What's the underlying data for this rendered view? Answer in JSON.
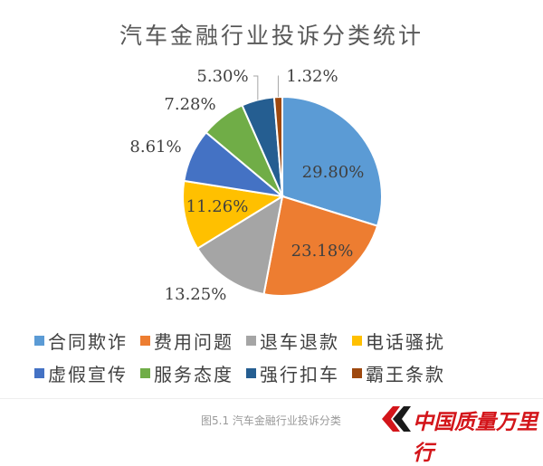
{
  "chart_data": {
    "type": "pie",
    "title": "汽车金融行业投诉分类统计",
    "slices": [
      {
        "label": "合同欺诈",
        "value": 29.8,
        "display": "29.80%",
        "color": "#5b9bd5"
      },
      {
        "label": "费用问题",
        "value": 23.18,
        "display": "23.18%",
        "color": "#ed7d31"
      },
      {
        "label": "退车退款",
        "value": 13.25,
        "display": "13.25%",
        "color": "#a5a5a5"
      },
      {
        "label": "电话骚扰",
        "value": 11.26,
        "display": "11.26%",
        "color": "#ffc000"
      },
      {
        "label": "虚假宣传",
        "value": 8.61,
        "display": "8.61%",
        "color": "#4472c4"
      },
      {
        "label": "服务态度",
        "value": 7.28,
        "display": "7.28%",
        "color": "#70ad47"
      },
      {
        "label": "强行扣车",
        "value": 5.3,
        "display": "5.30%",
        "color": "#255e91"
      },
      {
        "label": "霸王条款",
        "value": 1.32,
        "display": "1.32%",
        "color": "#9e480e"
      }
    ],
    "legend_position": "bottom"
  },
  "caption": "图5.1  汽车金融行业投诉分类",
  "brand": {
    "name": "中国质量万里行",
    "color": "#d3151a"
  }
}
